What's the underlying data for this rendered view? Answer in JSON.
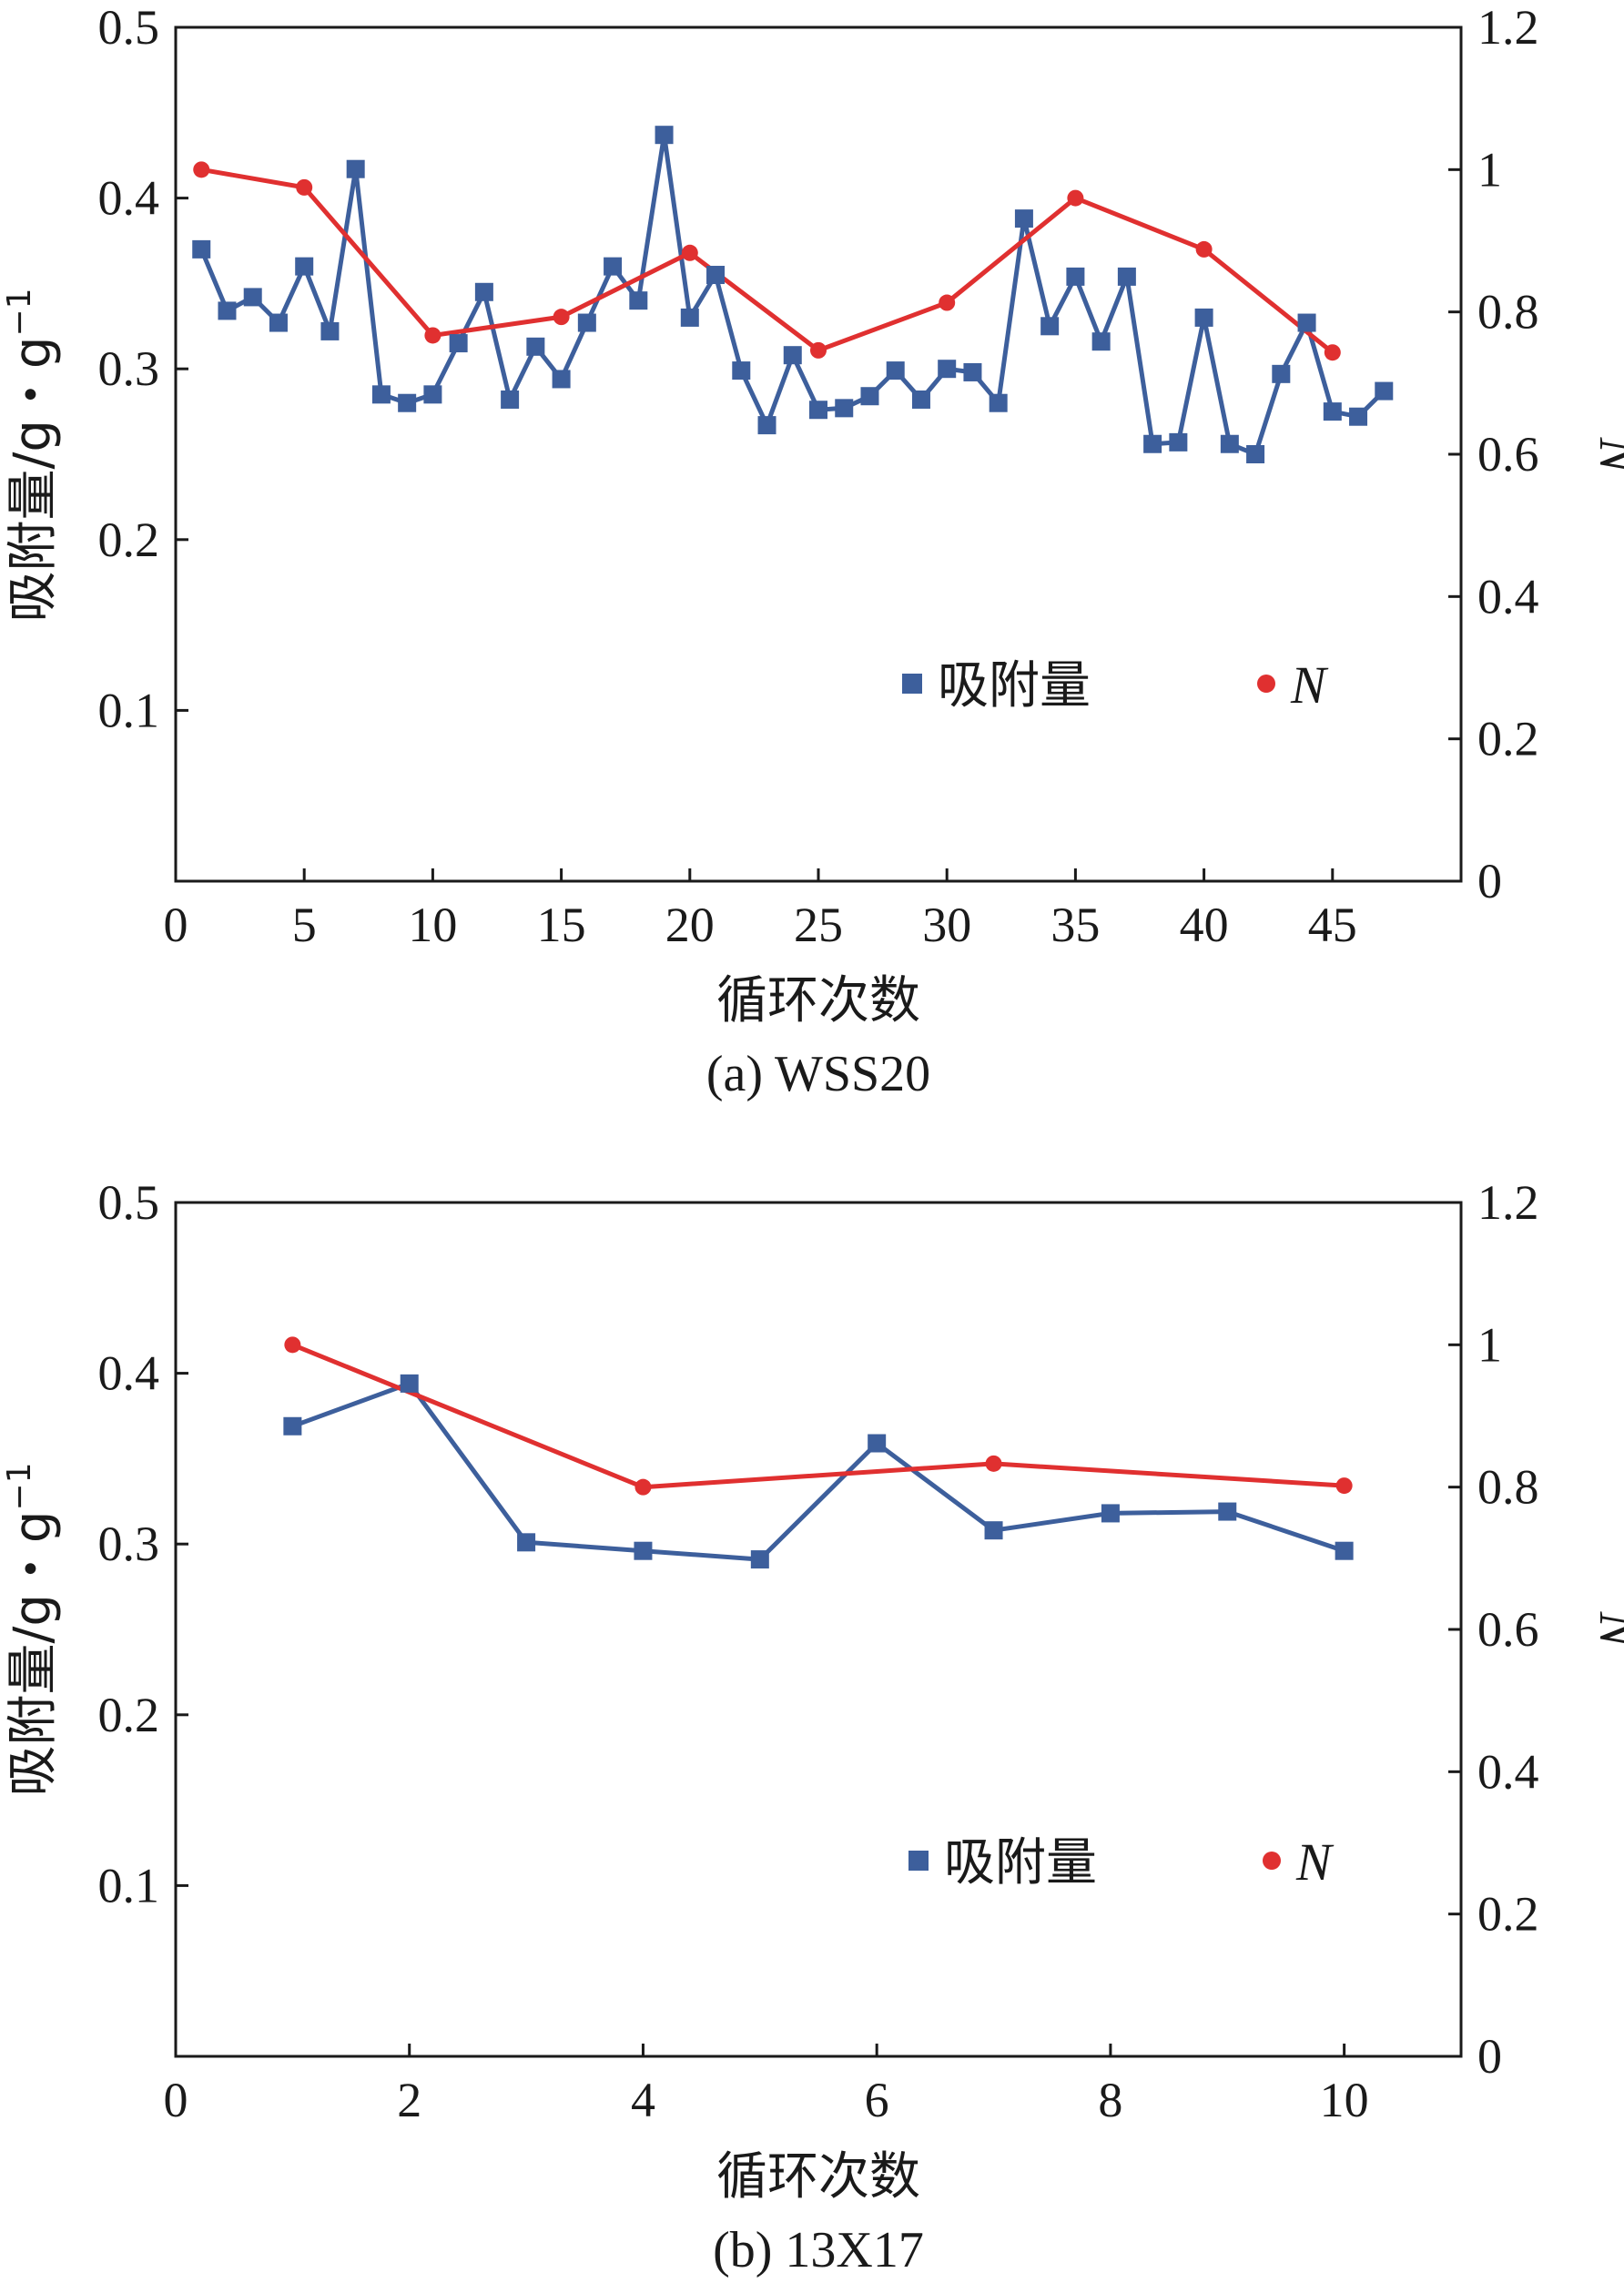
{
  "chart_data": [
    {
      "type": "line",
      "caption": "(a) WSS20",
      "xlabel": "循环次数",
      "ylabel": "吸附量/g・g",
      "ylabel_sup": "−1",
      "y2label": "N",
      "xlim": [
        0,
        50
      ],
      "xticks": [
        0,
        5,
        10,
        15,
        20,
        25,
        30,
        35,
        40,
        45
      ],
      "ylim": [
        0,
        0.5
      ],
      "yticks": [
        "0.1",
        "0.2",
        "0.3",
        "0.4",
        "0.5"
      ],
      "y2lim": [
        0,
        1.2
      ],
      "y2ticks": [
        "0",
        "0.2",
        "0.4",
        "0.6",
        "0.8",
        "1",
        "1.2"
      ],
      "legend": {
        "placement": "lower-right",
        "entries": [
          "吸附量",
          "N"
        ]
      },
      "series": [
        {
          "name": "吸附量",
          "axis": "left",
          "color": "#3d5f9c",
          "marker": "square",
          "x": [
            1,
            2,
            3,
            4,
            5,
            6,
            7,
            8,
            9,
            10,
            11,
            12,
            13,
            14,
            15,
            16,
            17,
            18,
            19,
            20,
            21,
            22,
            23,
            24,
            25,
            26,
            27,
            28,
            29,
            30,
            31,
            32,
            33,
            34,
            35,
            36,
            37,
            38,
            39,
            40,
            41,
            42,
            43,
            44,
            45,
            46,
            47
          ],
          "values": [
            0.37,
            0.334,
            0.342,
            0.327,
            0.36,
            0.322,
            0.417,
            0.285,
            0.28,
            0.285,
            0.315,
            0.345,
            0.282,
            0.313,
            0.294,
            0.327,
            0.36,
            0.34,
            0.437,
            0.33,
            0.355,
            0.299,
            0.267,
            0.308,
            0.276,
            0.277,
            0.284,
            0.299,
            0.282,
            0.3,
            0.298,
            0.28,
            0.388,
            0.325,
            0.354,
            0.316,
            0.354,
            0.256,
            0.257,
            0.33,
            0.256,
            0.25,
            0.297,
            0.327,
            0.275,
            0.272,
            0.287
          ]
        },
        {
          "name": "N",
          "axis": "right",
          "color": "#e03030",
          "marker": "circle",
          "x": [
            1,
            5,
            10,
            15,
            20,
            25,
            30,
            35,
            40,
            45
          ],
          "values": [
            1.0,
            0.975,
            0.767,
            0.793,
            0.883,
            0.746,
            0.813,
            0.96,
            0.888,
            0.743
          ]
        }
      ]
    },
    {
      "type": "line",
      "caption": "(b) 13X17",
      "xlabel": "循环次数",
      "ylabel": "吸附量/g・g",
      "ylabel_sup": "−1",
      "y2label": "N",
      "xlim": [
        0,
        11
      ],
      "xticks": [
        0,
        2,
        4,
        6,
        8,
        10
      ],
      "ylim": [
        0,
        0.5
      ],
      "yticks": [
        "0.1",
        "0.2",
        "0.3",
        "0.4",
        "0.5"
      ],
      "y2lim": [
        0,
        1.2
      ],
      "y2ticks": [
        "0",
        "0.2",
        "0.4",
        "0.6",
        "0.8",
        "1",
        "1.2"
      ],
      "legend": {
        "placement": "lower-right",
        "entries": [
          "吸附量",
          "N"
        ]
      },
      "series": [
        {
          "name": "吸附量",
          "axis": "left",
          "color": "#3d5f9c",
          "marker": "square",
          "x": [
            1,
            2,
            3,
            4,
            5,
            6,
            7,
            8,
            9,
            10
          ],
          "values": [
            0.369,
            0.394,
            0.301,
            0.296,
            0.291,
            0.359,
            0.308,
            0.318,
            0.319,
            0.296
          ]
        },
        {
          "name": "N",
          "axis": "right",
          "color": "#e03030",
          "marker": "circle",
          "x": [
            1,
            4,
            7,
            10
          ],
          "values": [
            1.0,
            0.8,
            0.833,
            0.802
          ]
        }
      ]
    }
  ]
}
